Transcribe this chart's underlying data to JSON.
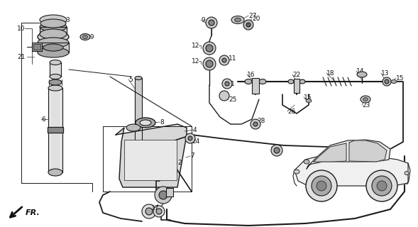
{
  "bg_color": "#ffffff",
  "lc": "#1a1a1a",
  "figsize": [
    5.89,
    3.2
  ],
  "dpi": 100,
  "xlim": [
    0,
    589
  ],
  "ylim": [
    0,
    320
  ]
}
